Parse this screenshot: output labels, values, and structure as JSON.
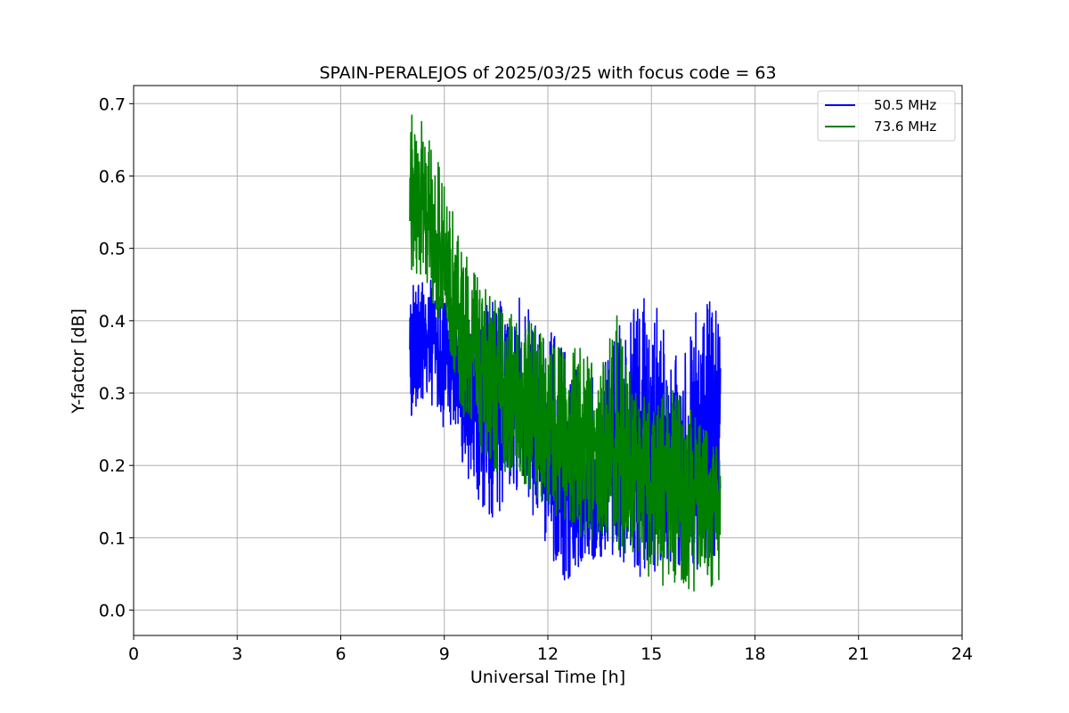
{
  "chart_data": {
    "type": "line",
    "title": "SPAIN-PERALEJOS of 2025/03/25 with focus code = 63",
    "xlabel": "Universal Time [h]",
    "ylabel": "Y-factor [dB]",
    "xlim": [
      0,
      24
    ],
    "ylim": [
      -0.035,
      0.725
    ],
    "xticks": [
      0,
      3,
      6,
      9,
      12,
      15,
      18,
      21,
      24
    ],
    "xtick_labels": [
      "0",
      "3",
      "6",
      "9",
      "12",
      "15",
      "18",
      "21",
      "24"
    ],
    "yticks": [
      0.0,
      0.1,
      0.2,
      0.3,
      0.4,
      0.5,
      0.6,
      0.7
    ],
    "ytick_labels": [
      "0.0",
      "0.1",
      "0.2",
      "0.3",
      "0.4",
      "0.5",
      "0.6",
      "0.7"
    ],
    "grid": true,
    "legend_position": "top-right",
    "series": [
      {
        "name": "50.5 MHz",
        "color": "#0000ff",
        "x": [
          8.0,
          8.5,
          9.0,
          9.5,
          10.0,
          10.5,
          11.0,
          11.5,
          12.0,
          12.5,
          13.0,
          13.5,
          14.0,
          14.5,
          15.0,
          15.5,
          16.0,
          16.5,
          17.0
        ],
        "mid": [
          0.36,
          0.38,
          0.35,
          0.29,
          0.27,
          0.3,
          0.28,
          0.26,
          0.22,
          0.17,
          0.16,
          0.16,
          0.2,
          0.25,
          0.24,
          0.21,
          0.22,
          0.25,
          0.27
        ],
        "lo": [
          0.26,
          0.29,
          0.25,
          0.2,
          0.15,
          0.12,
          0.17,
          0.14,
          0.08,
          0.04,
          0.06,
          0.07,
          0.07,
          0.04,
          0.04,
          0.06,
          0.06,
          0.05,
          0.05
        ],
        "hi": [
          0.45,
          0.47,
          0.45,
          0.4,
          0.42,
          0.43,
          0.44,
          0.42,
          0.39,
          0.36,
          0.33,
          0.32,
          0.4,
          0.42,
          0.44,
          0.38,
          0.37,
          0.45,
          0.43
        ]
      },
      {
        "name": "73.6 MHz",
        "color": "#008000",
        "x": [
          8.0,
          8.5,
          9.0,
          9.5,
          10.0,
          10.5,
          11.0,
          11.5,
          12.0,
          12.5,
          13.0,
          13.5,
          14.0,
          14.5,
          15.0,
          15.5,
          16.0,
          16.5,
          17.0
        ],
        "mid": [
          0.57,
          0.55,
          0.48,
          0.4,
          0.35,
          0.32,
          0.3,
          0.28,
          0.26,
          0.25,
          0.24,
          0.22,
          0.21,
          0.2,
          0.17,
          0.17,
          0.17,
          0.15,
          0.14
        ],
        "lo": [
          0.47,
          0.45,
          0.37,
          0.27,
          0.22,
          0.19,
          0.18,
          0.16,
          0.14,
          0.12,
          0.1,
          0.09,
          0.08,
          0.07,
          0.04,
          0.03,
          0.03,
          0.02,
          0.01
        ],
        "hi": [
          0.69,
          0.67,
          0.6,
          0.5,
          0.46,
          0.43,
          0.41,
          0.4,
          0.37,
          0.36,
          0.37,
          0.34,
          0.41,
          0.3,
          0.3,
          0.31,
          0.29,
          0.25,
          0.24
        ]
      }
    ]
  }
}
